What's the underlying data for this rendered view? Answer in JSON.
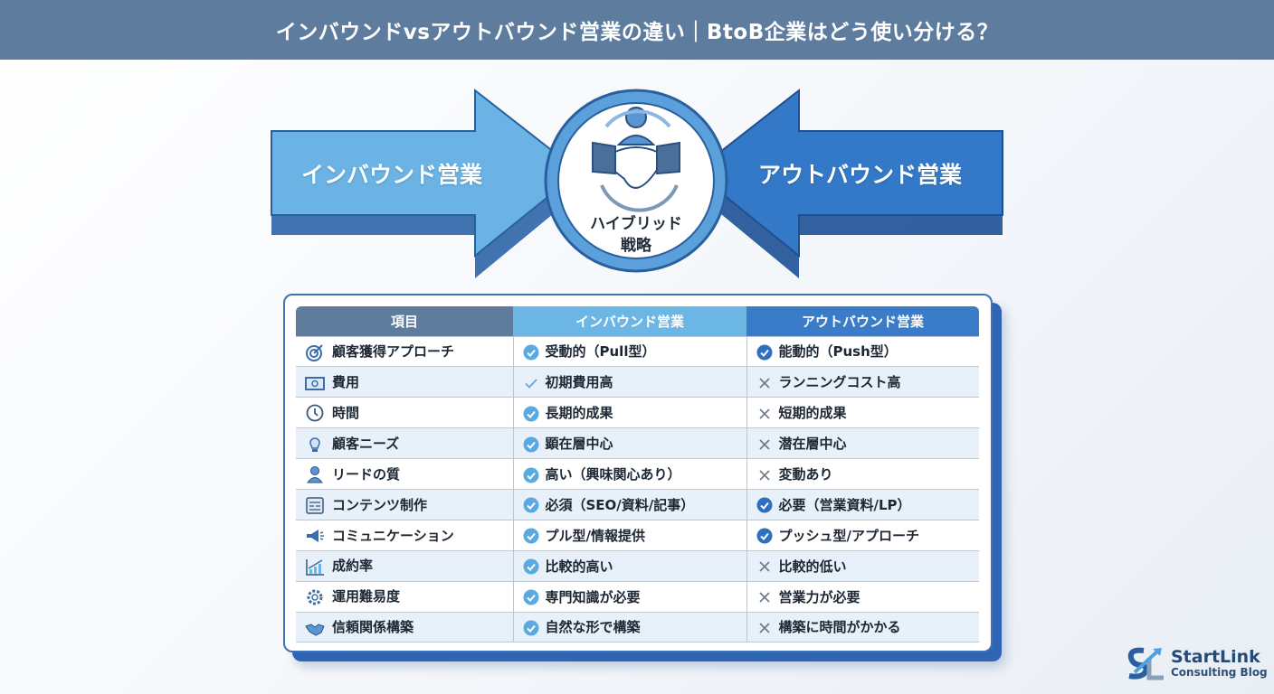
{
  "title": "インバウンドvsアウトバウンド営業の違い｜BtoB企業はどう使い分ける？",
  "hero": {
    "left_label": "インバウンド営業",
    "right_label": "アウトバウンド営業",
    "center_label_line1": "ハイブリッド",
    "center_label_line2": "戦略",
    "center_icon": "handshake-icon"
  },
  "colors": {
    "header": "#5d7c9e",
    "inbound": "#6cb6e6",
    "outbound": "#3b7cc8",
    "item": "#5f7c9c"
  },
  "table": {
    "headers": [
      "項目",
      "インバウンド営業",
      "アウトバウンド営業"
    ],
    "rows": [
      {
        "icon": "target",
        "item": "顧客獲得アプローチ",
        "inbound": "受動的（Pull型）",
        "in_mark": "check-circle",
        "outbound": "能動的（Push型）",
        "out_mark": "check-circle"
      },
      {
        "icon": "money",
        "item": "費用",
        "inbound": "初期費用高",
        "in_mark": "check",
        "outbound": "ランニングコスト高",
        "out_mark": "x"
      },
      {
        "icon": "clock",
        "item": "時間",
        "inbound": "長期的成果",
        "in_mark": "check-circle",
        "outbound": "短期的成果",
        "out_mark": "x"
      },
      {
        "icon": "lightbulb",
        "item": "顧客ニーズ",
        "inbound": "顕在層中心",
        "in_mark": "check-circle",
        "outbound": "潜在層中心",
        "out_mark": "x"
      },
      {
        "icon": "person",
        "item": "リードの質",
        "inbound": "高い（興味関心あり）",
        "in_mark": "check-circle",
        "outbound": "変動あり",
        "out_mark": "x"
      },
      {
        "icon": "document",
        "item": "コンテンツ制作",
        "inbound": "必須（SEO/資料/記事）",
        "in_mark": "check-circle",
        "outbound": "必要（営業資料/LP）",
        "out_mark": "check-circle"
      },
      {
        "icon": "megaphone",
        "item": "コミュニケーション",
        "inbound": "プル型/情報提供",
        "in_mark": "check-circle",
        "outbound": "プッシュ型/アプローチ",
        "out_mark": "check-circle"
      },
      {
        "icon": "chart",
        "item": "成約率",
        "inbound": "比較的高い",
        "in_mark": "check-circle",
        "outbound": "比較的低い",
        "out_mark": "x"
      },
      {
        "icon": "gear",
        "item": "運用難易度",
        "inbound": "専門知識が必要",
        "in_mark": "check-circle",
        "outbound": "営業力が必要",
        "out_mark": "x"
      },
      {
        "icon": "handshake",
        "item": "信頼関係構築",
        "inbound": "自然な形で構築",
        "in_mark": "check-circle",
        "outbound": "構築に時間がかかる",
        "out_mark": "x"
      }
    ]
  },
  "logo": {
    "name": "StartLink",
    "sub": "Consulting Blog"
  }
}
